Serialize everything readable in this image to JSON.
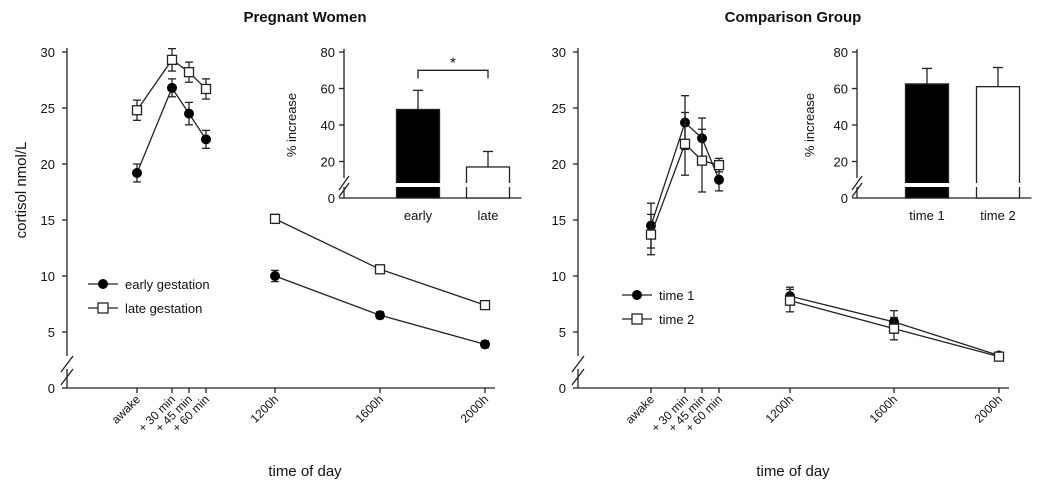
{
  "chart_data": [
    {
      "type": "line",
      "title": "Pregnant Women",
      "xlabel": "time of day",
      "ylabel": "cortisol nmol/L",
      "ylim": [
        0,
        30
      ],
      "y_ticks": [
        "0",
        "5",
        "10",
        "15",
        "20",
        "25",
        "30"
      ],
      "x": [
        "awake",
        "+ 30 min",
        "+ 45 min",
        "+ 60 min",
        "1200h",
        "1600h",
        "2000h"
      ],
      "segments": [
        [
          0,
          1,
          2,
          3
        ],
        [
          4,
          5,
          6
        ]
      ],
      "legend_position": "left-middle",
      "series": [
        {
          "name": "early gestation",
          "marker": "filled-circle",
          "values": [
            19.2,
            26.8,
            24.5,
            22.2,
            10.0,
            6.5,
            3.9
          ],
          "errors": [
            0.8,
            0.8,
            1.0,
            0.8,
            0.5,
            0.3,
            0.3
          ]
        },
        {
          "name": "late gestation",
          "marker": "open-square",
          "values": [
            24.8,
            29.3,
            28.2,
            26.7,
            15.1,
            10.6,
            7.4
          ],
          "errors": [
            0.9,
            1.0,
            0.9,
            0.9,
            0.4,
            0.3,
            0.3
          ]
        }
      ],
      "inset": {
        "type": "bar",
        "ylabel": "% increase",
        "ylim": [
          0,
          80
        ],
        "y_ticks": [
          "0",
          "20",
          "40",
          "60",
          "80"
        ],
        "categories": [
          "early",
          "late"
        ],
        "values": [
          48.5,
          17.0
        ],
        "errors": [
          10.5,
          8.5
        ],
        "fills": [
          "#000000",
          "#ffffff"
        ],
        "significance": "*"
      }
    },
    {
      "type": "line",
      "title": "Comparison Group",
      "xlabel": "time of day",
      "ylabel": "",
      "ylim": [
        0,
        30
      ],
      "y_ticks": [
        "0",
        "5",
        "10",
        "15",
        "20",
        "25",
        "30"
      ],
      "x": [
        "awake",
        "+ 30 min",
        "+ 45 min",
        "+ 60 min",
        "1200h",
        "1600h",
        "2000h"
      ],
      "segments": [
        [
          0,
          1,
          2,
          3
        ],
        [
          4,
          5,
          6
        ]
      ],
      "legend_position": "left-middle",
      "series": [
        {
          "name": "time 1",
          "marker": "filled-circle",
          "values": [
            14.5,
            23.7,
            22.3,
            18.6,
            8.2,
            5.9,
            2.9
          ],
          "errors": [
            2.0,
            2.4,
            1.8,
            1.0,
            0.8,
            1.0,
            0.3
          ]
        },
        {
          "name": "time 2",
          "marker": "open-square",
          "values": [
            13.7,
            21.8,
            20.3,
            19.9,
            7.8,
            5.3,
            2.8
          ],
          "errors": [
            1.8,
            2.8,
            2.8,
            0.6,
            1.0,
            1.0,
            0.3
          ]
        }
      ],
      "inset": {
        "type": "bar",
        "ylabel": "% increase",
        "ylim": [
          0,
          80
        ],
        "y_ticks": [
          "0",
          "20",
          "40",
          "60",
          "80"
        ],
        "categories": [
          "time 1",
          "time 2"
        ],
        "values": [
          62.5,
          61.0
        ],
        "errors": [
          8.5,
          10.5
        ],
        "fills": [
          "#000000",
          "#ffffff"
        ],
        "significance": ""
      }
    }
  ]
}
